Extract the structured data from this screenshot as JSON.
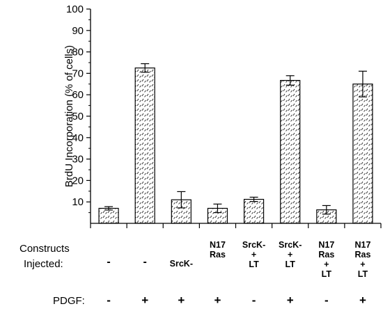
{
  "chart_data": {
    "type": "bar",
    "ylabel": "BrdU Incorporation (% of cells)",
    "ylim": [
      0,
      100
    ],
    "yticks": [
      10,
      20,
      30,
      40,
      50,
      60,
      70,
      80,
      90,
      100
    ],
    "grid": false,
    "bar_fill": "hatched",
    "values": [
      7,
      72.5,
      11,
      7,
      11.2,
      66.7,
      6.3,
      65
    ],
    "errors": [
      0.8,
      2,
      3.8,
      2,
      1,
      2.2,
      2,
      6
    ]
  },
  "table": {
    "constructs_label_line1": "Constructs",
    "constructs_label_line2": "Injected:",
    "pdgf_label": "PDGF:",
    "constructs": [
      [
        "-"
      ],
      [
        "-"
      ],
      [
        "SrcK-"
      ],
      [
        "N17",
        "Ras"
      ],
      [
        "SrcK-",
        "+",
        "LT"
      ],
      [
        "SrcK-",
        "+",
        "LT"
      ],
      [
        "N17",
        "Ras",
        "+",
        "LT"
      ],
      [
        "N17",
        "Ras",
        "+",
        "LT"
      ]
    ],
    "pdgf": [
      "-",
      "+",
      "+",
      "+",
      "-",
      "+",
      "-",
      "+"
    ]
  }
}
